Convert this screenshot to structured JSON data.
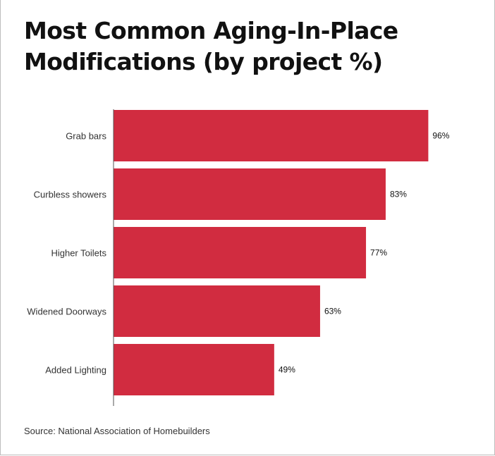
{
  "chart_data": {
    "type": "bar",
    "orientation": "horizontal",
    "title": "Most Common Aging-In-Place Modifications (by project %)",
    "title_lines": [
      "Most Common Aging-In-Place",
      "Modifications (by project %)"
    ],
    "categories": [
      "Grab bars",
      "Curbless showers",
      "Higher Toilets",
      "Widened Doorways",
      "Added Lighting"
    ],
    "values": [
      96,
      83,
      77,
      63,
      49
    ],
    "value_labels": [
      "96%",
      "83%",
      "77%",
      "63%",
      "49%"
    ],
    "unit": "%",
    "xlim": [
      0,
      100
    ],
    "grid": false,
    "bar_color": "#d12c40",
    "source": "Source: National Association of Homebuilders"
  }
}
